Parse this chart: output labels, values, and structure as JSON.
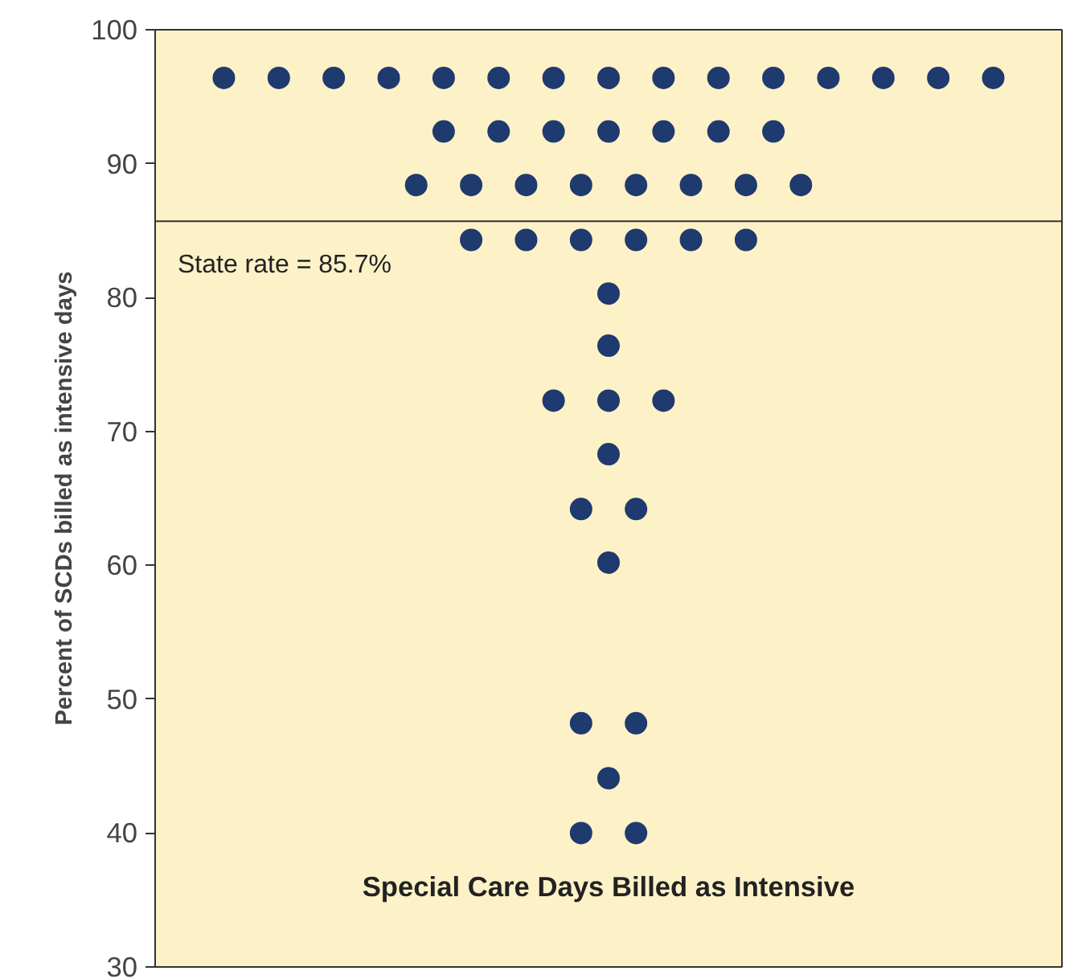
{
  "chart_data": {
    "type": "scatter",
    "ylabel": "Percent of SCDs billed as intensive days",
    "annotations": [
      "Special Care Days Billed as Intensive"
    ],
    "categories": [
      null,
      null,
      null,
      null,
      null,
      null,
      null,
      null,
      null,
      null,
      null,
      null,
      null,
      null,
      null,
      null,
      null,
      null,
      null,
      null,
      null,
      null,
      null,
      null,
      null,
      null,
      null,
      null,
      null,
      null,
      null,
      null,
      null
    ],
    "series": [
      {
        "color": "#1f3a6e",
        "values": [
          null,
          null,
          96.4,
          null,
          96.4,
          null,
          96.4,
          null,
          96.4,
          null,
          96.4,
          null,
          96.4,
          null,
          96.4,
          null,
          96.4,
          null,
          96.4,
          null,
          96.4,
          null,
          96.4,
          null,
          96.4,
          null,
          96.4,
          null,
          96.4,
          null,
          96.4,
          null,
          null
        ]
      },
      {
        "color": "#1f3a6e",
        "values": [
          null,
          null,
          null,
          null,
          null,
          null,
          null,
          null,
          null,
          null,
          92.4,
          null,
          92.4,
          null,
          92.4,
          null,
          92.4,
          null,
          92.4,
          null,
          92.4,
          null,
          92.4,
          null,
          null,
          null,
          null,
          null,
          null,
          null,
          null,
          null,
          null
        ]
      },
      {
        "color": "#1f3a6e",
        "values": [
          null,
          null,
          null,
          null,
          null,
          null,
          null,
          null,
          null,
          88.4,
          null,
          88.4,
          null,
          88.4,
          null,
          88.4,
          null,
          88.4,
          null,
          88.4,
          null,
          88.4,
          null,
          88.4,
          null,
          null,
          null,
          null,
          null,
          null,
          null,
          null,
          null
        ]
      },
      {
        "color": "#1f3a6e",
        "values": [
          null,
          null,
          null,
          null,
          null,
          null,
          null,
          null,
          null,
          null,
          null,
          84.3,
          null,
          84.3,
          null,
          84.3,
          null,
          84.3,
          null,
          84.3,
          null,
          84.3,
          null,
          null,
          null,
          null,
          null,
          null,
          null,
          null,
          null,
          null,
          null
        ]
      },
      {
        "color": "#1f3a6e",
        "values": [
          null,
          null,
          null,
          null,
          null,
          null,
          null,
          null,
          null,
          null,
          null,
          null,
          null,
          null,
          null,
          null,
          80.3,
          null,
          null,
          null,
          null,
          null,
          null,
          null,
          null,
          null,
          null,
          null,
          null,
          null,
          null,
          null,
          null
        ]
      },
      {
        "color": "#1f3a6e",
        "values": [
          null,
          null,
          null,
          null,
          null,
          null,
          null,
          null,
          null,
          null,
          null,
          null,
          null,
          null,
          null,
          null,
          76.4,
          null,
          null,
          null,
          null,
          null,
          null,
          null,
          null,
          null,
          null,
          null,
          null,
          null,
          null,
          null,
          null
        ]
      },
      {
        "color": "#1f3a6e",
        "values": [
          null,
          null,
          null,
          null,
          null,
          null,
          null,
          null,
          null,
          null,
          null,
          null,
          null,
          null,
          72.3,
          null,
          72.3,
          null,
          72.3,
          null,
          null,
          null,
          null,
          null,
          null,
          null,
          null,
          null,
          null,
          null,
          null,
          null,
          null
        ]
      },
      {
        "color": "#1f3a6e",
        "values": [
          null,
          null,
          null,
          null,
          null,
          null,
          null,
          null,
          null,
          null,
          null,
          null,
          null,
          null,
          null,
          null,
          68.3,
          null,
          null,
          null,
          null,
          null,
          null,
          null,
          null,
          null,
          null,
          null,
          null,
          null,
          null,
          null,
          null
        ]
      },
      {
        "color": "#1f3a6e",
        "values": [
          null,
          null,
          null,
          null,
          null,
          null,
          null,
          null,
          null,
          null,
          null,
          null,
          null,
          null,
          null,
          64.2,
          null,
          64.2,
          null,
          null,
          null,
          null,
          null,
          null,
          null,
          null,
          null,
          null,
          null,
          null,
          null,
          null,
          null
        ]
      },
      {
        "color": "#1f3a6e",
        "values": [
          null,
          null,
          null,
          null,
          null,
          null,
          null,
          null,
          null,
          null,
          null,
          null,
          null,
          null,
          null,
          null,
          60.2,
          null,
          null,
          null,
          null,
          null,
          null,
          null,
          null,
          null,
          null,
          null,
          null,
          null,
          null,
          null,
          null
        ]
      },
      {
        "color": "#1f3a6e",
        "values": [
          null,
          null,
          null,
          null,
          null,
          null,
          null,
          null,
          null,
          null,
          null,
          null,
          null,
          null,
          null,
          48.2,
          null,
          48.2,
          null,
          null,
          null,
          null,
          null,
          null,
          null,
          null,
          null,
          null,
          null,
          null,
          null,
          null,
          null
        ]
      },
      {
        "color": "#1f3a6e",
        "values": [
          null,
          null,
          null,
          null,
          null,
          null,
          null,
          null,
          null,
          null,
          null,
          null,
          null,
          null,
          null,
          null,
          44.1,
          null,
          null,
          null,
          null,
          null,
          null,
          null,
          null,
          null,
          null,
          null,
          null,
          null,
          null,
          null,
          null
        ]
      },
      {
        "color": "#1f3a6e",
        "values": [
          null,
          null,
          null,
          null,
          null,
          null,
          null,
          null,
          null,
          null,
          null,
          null,
          null,
          null,
          null,
          40,
          null,
          40,
          null,
          null,
          null,
          null,
          null,
          null,
          null,
          null,
          null,
          null,
          null,
          null,
          null,
          null,
          null
        ]
      }
    ],
    "ylim": [
      30,
      100
    ],
    "yticks": [
      30,
      40,
      50,
      60,
      70,
      80,
      90,
      100
    ],
    "ref_lines": [
      {
        "axis": "y",
        "value": 85.7,
        "label": "State rate = 85.7%",
        "color": "#333333"
      }
    ],
    "tick_labels": "y",
    "grid": false,
    "marker": "circle"
  }
}
